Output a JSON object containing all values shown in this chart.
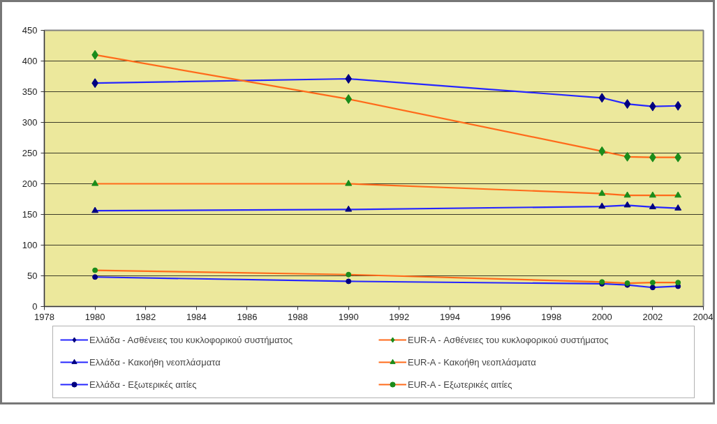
{
  "chart_data": {
    "type": "line",
    "x": [
      1980,
      1990,
      2000,
      2001,
      2002,
      2003
    ],
    "series": [
      {
        "name": "Ελλάδα - Ασθένειες του κυκλοφορικού συστήματος",
        "color": "#2626ff",
        "colors": [
          "#000080",
          "#000080",
          "#000080",
          "#000080",
          "#000080",
          "#000080"
        ],
        "marker": "diamond",
        "values": [
          364,
          371,
          340,
          330,
          326,
          327
        ]
      },
      {
        "name": "EUR-A - Ασθένειες του κυκλοφορικού συστήματος",
        "color": "#ff6a1a",
        "colors": [
          "#1a8c1a",
          "#1a8c1a",
          "#1a8c1a",
          "#1a8c1a",
          "#1a8c1a",
          "#1a8c1a"
        ],
        "marker": "diamond",
        "values": [
          410,
          338,
          253,
          244,
          243,
          243
        ]
      },
      {
        "name": "Ελλάδα - Κακοήθη νεοπλάσματα",
        "color": "#2626ff",
        "colors": [
          "#000080",
          "#000080",
          "#000080",
          "#000080",
          "#000080",
          "#000080"
        ],
        "marker": "triangle",
        "values": [
          156,
          158,
          163,
          165,
          162,
          160
        ]
      },
      {
        "name": "EUR-A - Κακοήθη νεοπλάσματα",
        "color": "#ff6a1a",
        "colors": [
          "#1a8c1a",
          "#1a8c1a",
          "#1a8c1a",
          "#1a8c1a",
          "#1a8c1a",
          "#1a8c1a"
        ],
        "marker": "triangle",
        "values": [
          200,
          200,
          184,
          181,
          181,
          181
        ]
      },
      {
        "name": "Ελλάδα - Εξωτερικές αιτίες",
        "color": "#2626ff",
        "colors": [
          "#000080",
          "#000080",
          "#000080",
          "#000080",
          "#000080",
          "#000080"
        ],
        "marker": "circle",
        "values": [
          48,
          41,
          37,
          35,
          31,
          33
        ]
      },
      {
        "name": "EUR-A - Εξωτερικές αιτίες",
        "color": "#ff6a1a",
        "colors": [
          "#1a8c1a",
          "#1a8c1a",
          "#1a8c1a",
          "#1a8c1a",
          "#1a8c1a",
          "#1a8c1a"
        ],
        "marker": "circle",
        "values": [
          59,
          52,
          40,
          38,
          39,
          39
        ]
      }
    ],
    "xlim": [
      1978,
      2004
    ],
    "xticks": [
      1978,
      1980,
      1982,
      1984,
      1986,
      1988,
      1990,
      1992,
      1994,
      1996,
      1998,
      2000,
      2002,
      2004
    ],
    "ylim": [
      0,
      450
    ],
    "yticks": [
      0,
      50,
      100,
      150,
      200,
      250,
      300,
      350,
      400,
      450
    ],
    "grid": "y",
    "legend": "bottom",
    "line_style": "solid"
  }
}
